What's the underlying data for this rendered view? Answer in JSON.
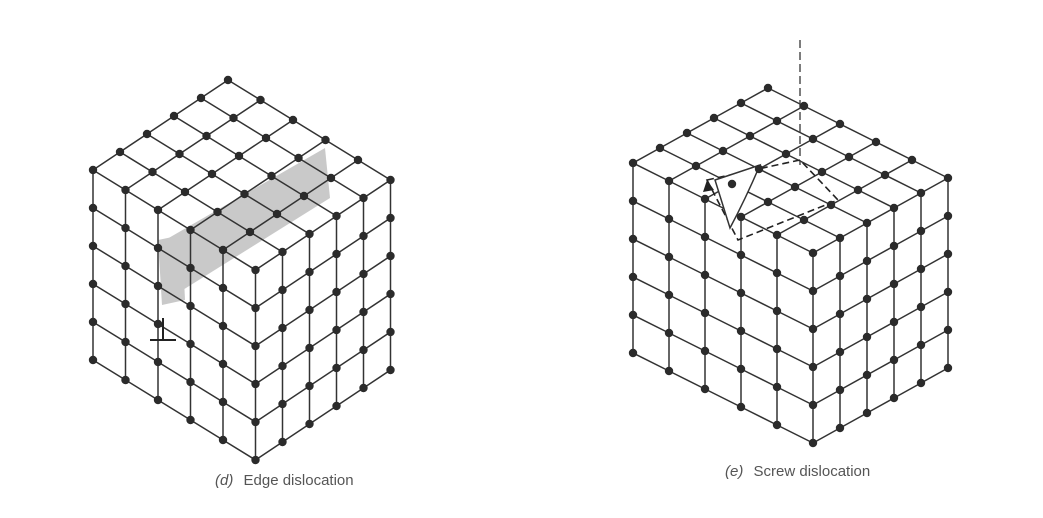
{
  "panels": [
    {
      "id": "d",
      "letter": "(d)",
      "caption": "Edge dislocation"
    },
    {
      "id": "e",
      "letter": "(e)",
      "caption": "Screw dislocation"
    }
  ],
  "colors": {
    "lattice": "#333333",
    "atom": "#2b2b2b",
    "extra_half_plane": "#c9c9c9",
    "caption": "#555555"
  }
}
